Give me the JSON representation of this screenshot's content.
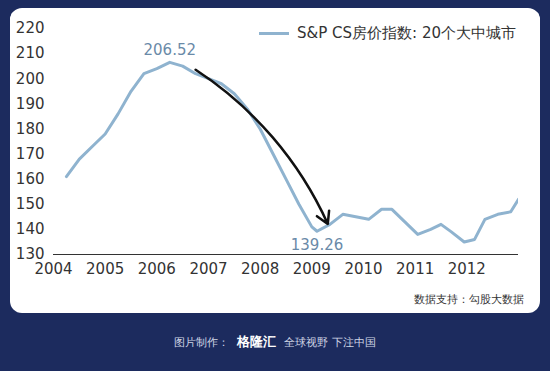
{
  "chart_data": {
    "type": "line",
    "x": [
      2004.25,
      2004.5,
      2004.75,
      2005.0,
      2005.25,
      2005.5,
      2005.75,
      2006.0,
      2006.25,
      2006.5,
      2006.75,
      2007.0,
      2007.25,
      2007.5,
      2007.75,
      2008.0,
      2008.25,
      2008.5,
      2008.75,
      2009.0,
      2009.1,
      2009.35,
      2009.6,
      2009.85,
      2010.1,
      2010.35,
      2010.55,
      2010.8,
      2011.05,
      2011.3,
      2011.5,
      2011.7,
      2011.95,
      2012.15,
      2012.35,
      2012.6,
      2012.85,
      2013.0
    ],
    "series": [
      {
        "name": "S&P CS房价指数: 20个大中城市",
        "color": "#8fb3cf",
        "values": [
          161,
          168,
          173,
          178,
          186,
          195,
          202,
          204,
          206.52,
          205,
          202,
          200,
          198,
          194,
          188,
          180,
          170,
          160,
          150,
          141,
          139.26,
          142,
          146,
          145,
          144,
          148,
          148,
          143,
          138,
          140,
          142,
          139,
          135,
          136,
          144,
          146,
          147,
          152
        ]
      }
    ],
    "xlim": [
      2004,
      2013
    ],
    "xticks": [
      2004,
      2005,
      2006,
      2007,
      2008,
      2009,
      2010,
      2011,
      2012
    ],
    "ylim": [
      130,
      220
    ],
    "yticks": [
      130,
      140,
      150,
      160,
      170,
      180,
      190,
      200,
      210,
      220
    ],
    "grid": false,
    "legend": "top-right",
    "annotations": [
      {
        "text": "206.52",
        "x": 2006.25,
        "y": 206.52,
        "position": "above"
      },
      {
        "text": "139.26",
        "x": 2009.1,
        "y": 139.26,
        "position": "below"
      }
    ],
    "source": "数据支持：勾股大数据",
    "footer": [
      "图片制作：",
      "格隆汇",
      "全球视野 下注中国"
    ]
  }
}
